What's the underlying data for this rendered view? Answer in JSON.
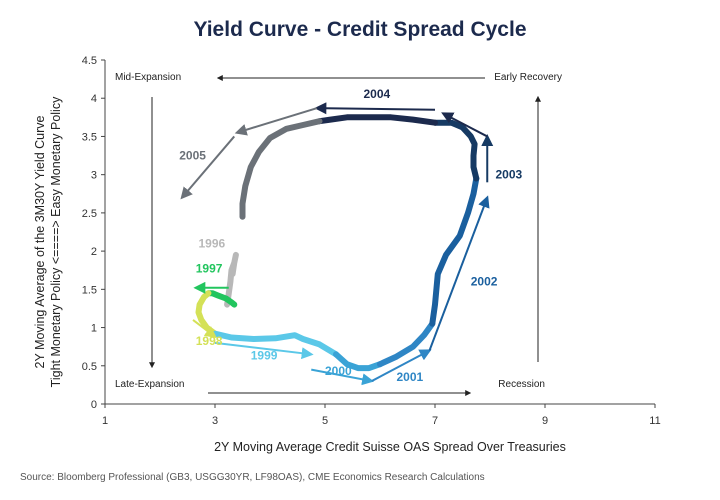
{
  "title": "Yield Curve - Credit Spread Cycle",
  "source": "Source: Bloomberg Professional (GB3, USGG30YR, LF98OAS), CME Economics Research Calculations",
  "chart_data": {
    "type": "line",
    "xlabel": "2Y Moving Average Credit Suisse OAS Spread Over Treasuries",
    "ylabel_line1": "2Y Moving Average of the 3M30Y Yield Curve",
    "ylabel_line2": "Tight Monetary Policy <====> Easy Monetary Policy",
    "xlim": [
      1,
      11
    ],
    "ylim": [
      0,
      4.5
    ],
    "xticks": [
      1,
      3,
      5,
      7,
      9,
      11
    ],
    "yticks": [
      0,
      0.5,
      1,
      1.5,
      2,
      2.5,
      3,
      3.5,
      4,
      4.5
    ],
    "quadrants": {
      "top_left": "Mid-Expansion",
      "top_right": "Early Recovery",
      "bottom_left": "Late-Expansion",
      "bottom_right": "Recession"
    },
    "series": [
      {
        "name": "1996",
        "color": "#b8b8b8",
        "x": [
          3.22,
          3.25,
          3.28,
          3.3,
          3.35,
          3.38,
          3.35,
          3.32
        ],
        "y": [
          1.3,
          1.45,
          1.6,
          1.75,
          1.85,
          1.95,
          1.85,
          1.7
        ]
      },
      {
        "name": "1997",
        "color": "#22c55e",
        "x": [
          3.35,
          3.3,
          3.2,
          3.05,
          2.95,
          2.88
        ],
        "y": [
          1.3,
          1.33,
          1.38,
          1.42,
          1.45,
          1.45
        ]
      },
      {
        "name": "1998",
        "color": "#d4e157",
        "x": [
          2.88,
          2.8,
          2.72,
          2.7,
          2.75,
          2.85,
          3.0
        ],
        "y": [
          1.45,
          1.4,
          1.3,
          1.2,
          1.1,
          1.0,
          0.92
        ]
      },
      {
        "name": "1999",
        "color": "#5bc8e8",
        "x": [
          3.0,
          3.3,
          3.7,
          4.1,
          4.45,
          4.6,
          4.9,
          5.2
        ],
        "y": [
          0.92,
          0.87,
          0.85,
          0.86,
          0.9,
          0.85,
          0.78,
          0.65
        ]
      },
      {
        "name": "2000",
        "color": "#3aa3d6",
        "x": [
          5.2,
          5.4,
          5.6,
          5.8,
          6.0
        ],
        "y": [
          0.65,
          0.52,
          0.47,
          0.47,
          0.52
        ]
      },
      {
        "name": "2001",
        "color": "#2f86c5",
        "x": [
          6.0,
          6.3,
          6.6,
          6.8,
          6.95
        ],
        "y": [
          0.52,
          0.62,
          0.75,
          0.9,
          1.05
        ]
      },
      {
        "name": "2002",
        "color": "#1a5f9e",
        "x": [
          6.95,
          7.0,
          7.05,
          7.2,
          7.45,
          7.6,
          7.7,
          7.75
        ],
        "y": [
          1.05,
          1.3,
          1.7,
          1.95,
          2.2,
          2.5,
          2.75,
          2.95
        ]
      },
      {
        "name": "2003",
        "color": "#163a63",
        "x": [
          7.75,
          7.7,
          7.7,
          7.72,
          7.65,
          7.5,
          7.3,
          7.0
        ],
        "y": [
          2.95,
          3.1,
          3.25,
          3.4,
          3.5,
          3.62,
          3.68,
          3.68
        ]
      },
      {
        "name": "2004",
        "color": "#1c2a4d",
        "x": [
          7.0,
          6.6,
          6.2,
          5.8,
          5.4,
          5.1,
          4.9
        ],
        "y": [
          3.68,
          3.72,
          3.75,
          3.75,
          3.75,
          3.72,
          3.7
        ]
      },
      {
        "name": "2005",
        "color": "#6b7178",
        "x": [
          4.9,
          4.6,
          4.3,
          4.0,
          3.8,
          3.65,
          3.55,
          3.5,
          3.5
        ],
        "y": [
          3.7,
          3.65,
          3.6,
          3.48,
          3.3,
          3.1,
          2.85,
          2.62,
          2.45
        ]
      }
    ],
    "year_labels": [
      {
        "text": "1996",
        "x": 2.7,
        "y": 2.05,
        "color": "#b8b8b8"
      },
      {
        "text": "1997",
        "x": 2.65,
        "y": 1.72,
        "color": "#22c55e"
      },
      {
        "text": "1998",
        "x": 2.65,
        "y": 0.77,
        "color": "#d4e157"
      },
      {
        "text": "1999",
        "x": 3.65,
        "y": 0.58,
        "color": "#5bc8e8"
      },
      {
        "text": "2000",
        "x": 5.0,
        "y": 0.38,
        "color": "#3aa3d6"
      },
      {
        "text": "2001",
        "x": 6.3,
        "y": 0.3,
        "color": "#2f86c5"
      },
      {
        "text": "2002",
        "x": 7.65,
        "y": 1.55,
        "color": "#1a5f9e"
      },
      {
        "text": "2003",
        "x": 8.1,
        "y": 2.95,
        "color": "#163a63"
      },
      {
        "text": "2004",
        "x": 5.7,
        "y": 4.0,
        "color": "#1c2a4d"
      },
      {
        "text": "2005",
        "x": 2.35,
        "y": 3.2,
        "color": "#6b7178"
      }
    ],
    "arrows": [
      {
        "color": "#22c55e",
        "from": [
          3.25,
          1.52
        ],
        "to": [
          2.65,
          1.52
        ]
      },
      {
        "color": "#d4e157",
        "from": [
          2.6,
          1.1
        ],
        "to": [
          3.0,
          0.88
        ]
      },
      {
        "color": "#5bc8e8",
        "from": [
          3.0,
          0.8
        ],
        "to": [
          4.75,
          0.65
        ]
      },
      {
        "color": "#3aa3d6",
        "from": [
          4.75,
          0.45
        ],
        "to": [
          5.85,
          0.3
        ]
      },
      {
        "color": "#2f86c5",
        "from": [
          5.85,
          0.3
        ],
        "to": [
          6.9,
          0.7
        ]
      },
      {
        "color": "#1a5f9e",
        "from": [
          6.9,
          0.7
        ],
        "to": [
          7.95,
          2.7
        ]
      },
      {
        "color": "#163a63",
        "from": [
          7.95,
          2.9
        ],
        "to": [
          7.95,
          3.5
        ]
      },
      {
        "color": "#1c2a4d",
        "from": [
          7.95,
          3.5
        ],
        "to": [
          7.15,
          3.8
        ]
      },
      {
        "color": "#1c2a4d",
        "from": [
          7.0,
          3.85
        ],
        "to": [
          4.85,
          3.87
        ]
      },
      {
        "color": "#6b7178",
        "from": [
          4.85,
          3.87
        ],
        "to": [
          3.4,
          3.55
        ]
      },
      {
        "color": "#6b7178",
        "from": [
          3.35,
          3.5
        ],
        "to": [
          2.4,
          2.7
        ]
      }
    ],
    "cycle_arrows": [
      {
        "from": [
          8.35,
          3.5
        ],
        "to": [
          8.35,
          3.75
        ]
      },
      {
        "from": [
          7.3,
          4.3
        ],
        "to": [
          5.9,
          4.3
        ]
      },
      {
        "from": [
          1.9,
          4.0
        ],
        "to": [
          1.9,
          3.75
        ]
      },
      {
        "from": [
          3.2,
          0.18
        ],
        "to": [
          5.0,
          0.18
        ]
      }
    ]
  }
}
